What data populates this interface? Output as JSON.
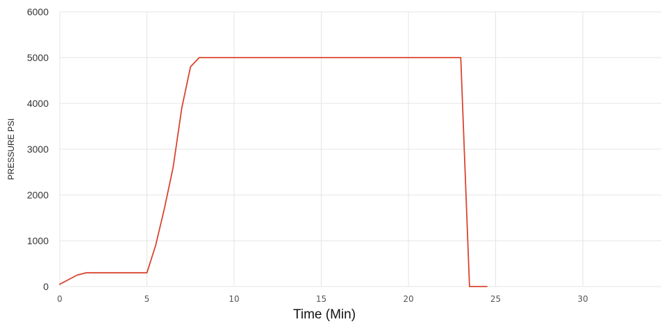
{
  "chart_data": {
    "type": "line",
    "title": "",
    "xlabel": "Time (Min)",
    "ylabel": "PRESSURE PSI",
    "xlim": [
      0,
      34.5
    ],
    "ylim": [
      0,
      6000
    ],
    "x_ticks": [
      0,
      5,
      10,
      15,
      20,
      25,
      30
    ],
    "y_ticks": [
      0,
      1000,
      2000,
      3000,
      4000,
      5000,
      6000
    ],
    "grid": true,
    "legend": "none",
    "series": [
      {
        "color": "#d9442e",
        "x": [
          0,
          1,
          1.5,
          2,
          5,
          5.5,
          6,
          6.5,
          7,
          7.5,
          8,
          23,
          23.5,
          24.5
        ],
        "y": [
          50,
          250,
          300,
          300,
          300,
          900,
          1700,
          2600,
          3900,
          4800,
          5000,
          5000,
          0,
          0
        ]
      }
    ]
  }
}
